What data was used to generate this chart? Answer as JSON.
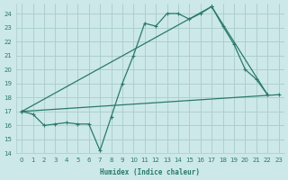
{
  "xlabel": "Humidex (Indice chaleur)",
  "background_color": "#cce8e8",
  "grid_color": "#aacccc",
  "line_color": "#2a7a6a",
  "xlim": [
    -0.5,
    23.5
  ],
  "ylim": [
    14,
    24.7
  ],
  "yticks": [
    14,
    15,
    16,
    17,
    18,
    19,
    20,
    21,
    22,
    23,
    24
  ],
  "xticks": [
    0,
    1,
    2,
    3,
    4,
    5,
    6,
    7,
    8,
    9,
    10,
    11,
    12,
    13,
    14,
    15,
    16,
    17,
    18,
    19,
    20,
    21,
    22,
    23
  ],
  "line1_x": [
    0,
    1,
    2,
    3,
    4,
    5,
    6,
    7,
    8,
    9,
    10,
    11,
    12,
    13,
    14,
    15,
    16,
    17,
    18,
    19,
    20,
    21,
    22
  ],
  "line1_y": [
    17.0,
    16.8,
    16.0,
    16.1,
    16.2,
    16.1,
    16.1,
    14.2,
    16.6,
    19.0,
    21.0,
    23.3,
    23.1,
    24.0,
    24.0,
    23.6,
    24.0,
    24.5,
    23.1,
    21.8,
    20.0,
    19.3,
    18.2
  ],
  "line2_x": [
    0,
    17,
    22
  ],
  "line2_y": [
    17.0,
    24.5,
    18.2
  ],
  "line3_x": [
    0,
    23
  ],
  "line3_y": [
    17.0,
    18.2
  ]
}
